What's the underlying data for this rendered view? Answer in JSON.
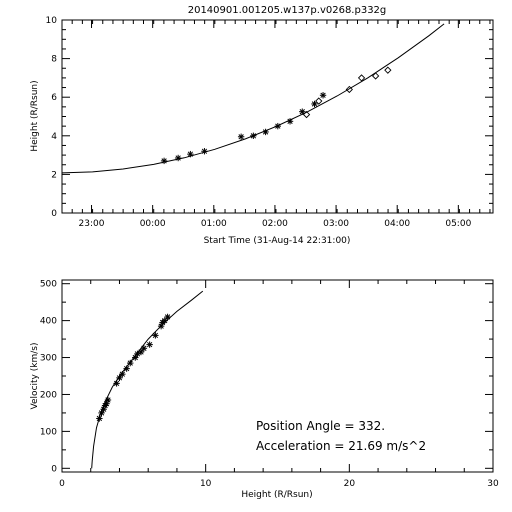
{
  "chart_data": [
    {
      "type": "scatter",
      "title": "20140901.001205.w137p.v0268.p332g",
      "xlabel": "Start Time (31-Aug-14 22:31:00)",
      "ylabel": "Height (R/Rsun)",
      "x_unit": "hours since 31-Aug-14 22:31:00",
      "xlim": [
        0,
        7.05
      ],
      "ylim": [
        0,
        10
      ],
      "x_ticks": [
        {
          "value": 0.483,
          "label": "23:00"
        },
        {
          "value": 1.483,
          "label": "00:00"
        },
        {
          "value": 2.483,
          "label": "01:00"
        },
        {
          "value": 3.483,
          "label": "02:00"
        },
        {
          "value": 4.483,
          "label": "03:00"
        },
        {
          "value": 5.483,
          "label": "04:00"
        },
        {
          "value": 6.483,
          "label": "05:00"
        }
      ],
      "y_ticks": [
        0,
        2,
        4,
        6,
        8,
        10
      ],
      "series": [
        {
          "marker": "asterisk",
          "x": [
            1.67,
            1.9,
            2.1,
            2.33,
            2.93,
            3.13,
            3.33,
            3.53,
            3.73,
            3.93,
            4.13,
            4.27
          ],
          "y": [
            2.7,
            2.85,
            3.05,
            3.2,
            3.95,
            4.0,
            4.2,
            4.5,
            4.75,
            5.25,
            5.65,
            6.1
          ]
        },
        {
          "marker": "diamond",
          "x": [
            4.0,
            4.2,
            4.7,
            4.9,
            5.13,
            5.33
          ],
          "y": [
            5.1,
            5.8,
            6.4,
            7.0,
            7.1,
            7.4
          ]
        },
        {
          "marker": "line",
          "x": [
            0,
            0.5,
            1.0,
            1.5,
            2.0,
            2.5,
            3.0,
            3.5,
            4.0,
            4.5,
            5.0,
            5.5,
            6.0,
            6.25
          ],
          "y": [
            2.08,
            2.13,
            2.28,
            2.52,
            2.86,
            3.3,
            3.84,
            4.48,
            5.22,
            6.06,
            7.0,
            8.04,
            9.18,
            9.8
          ]
        }
      ]
    },
    {
      "type": "scatter",
      "xlabel": "Height (R/Rsun)",
      "ylabel": "Velocity (km/s)",
      "xlim": [
        0,
        30
      ],
      "ylim": [
        -10,
        510
      ],
      "x_ticks": [
        0,
        10,
        20,
        30
      ],
      "y_ticks": [
        0,
        100,
        200,
        300,
        400,
        500
      ],
      "series": [
        {
          "marker": "asterisk",
          "x": [
            2.6,
            2.75,
            2.9,
            3.0,
            3.1,
            3.2,
            3.8,
            4.0,
            4.2,
            4.5,
            4.75,
            5.1,
            5.25,
            5.5,
            5.7,
            6.1,
            6.5,
            6.9,
            7.0,
            7.15,
            7.35
          ],
          "y": [
            135,
            150,
            160,
            170,
            175,
            185,
            230,
            245,
            255,
            270,
            285,
            300,
            310,
            315,
            325,
            335,
            360,
            385,
            395,
            400,
            410
          ]
        },
        {
          "marker": "line",
          "x": [
            2.07,
            2.1,
            2.2,
            2.4,
            2.7,
            3.0,
            3.5,
            4.0,
            5.0,
            6.0,
            7.0,
            8.0,
            9.0,
            9.8
          ],
          "y": [
            0,
            20,
            60,
            110,
            150,
            180,
            220,
            250,
            300,
            350,
            390,
            425,
            455,
            480
          ]
        }
      ]
    }
  ],
  "annotations": {
    "position_angle": "Position Angle =  332.",
    "acceleration": "Acceleration =  21.69 m/s^2"
  }
}
